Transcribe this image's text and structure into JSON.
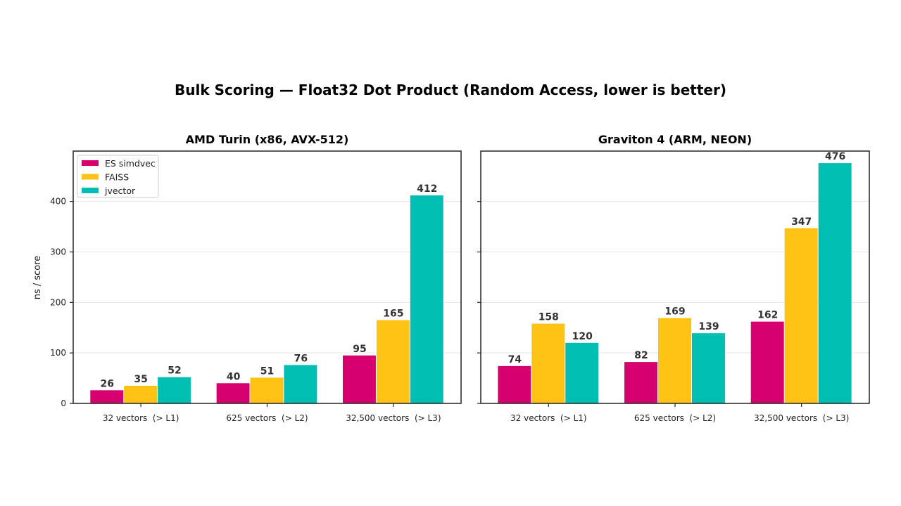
{
  "chart_data": {
    "title": "Bulk Scoring — Float32 Dot Product (Random Access, lower is better)",
    "type": "bar",
    "colors": {
      "ES simdvec": "#d6006e",
      "FAISS": "#fdc314",
      "jvector": "#00bfb2"
    },
    "legend": {
      "placement": "top-left",
      "entries": [
        "ES simdvec",
        "FAISS",
        "jvector"
      ]
    },
    "ylabel": "ns / score",
    "ylim": [
      0,
      500
    ],
    "yticks": [
      0,
      100,
      200,
      300,
      400
    ],
    "grid": "y",
    "panels": [
      {
        "title": "AMD Turin (x86, AVX-512)",
        "categories": [
          "32 vectors  (> L1)",
          "625 vectors  (> L2)",
          "32,500 vectors  (> L3)"
        ],
        "series": [
          {
            "name": "ES simdvec",
            "values": [
              26,
              40,
              95
            ]
          },
          {
            "name": "FAISS",
            "values": [
              35,
              51,
              165
            ]
          },
          {
            "name": "jvector",
            "values": [
              52,
              76,
              412
            ]
          }
        ],
        "show_ytick_labels": true
      },
      {
        "title": "Graviton 4 (ARM, NEON)",
        "categories": [
          "32 vectors  (> L1)",
          "625 vectors  (> L2)",
          "32,500 vectors  (> L3)"
        ],
        "series": [
          {
            "name": "ES simdvec",
            "values": [
              74,
              82,
              162
            ]
          },
          {
            "name": "FAISS",
            "values": [
              158,
              169,
              347
            ]
          },
          {
            "name": "jvector",
            "values": [
              120,
              139,
              476
            ]
          }
        ],
        "show_ytick_labels": false
      }
    ]
  }
}
